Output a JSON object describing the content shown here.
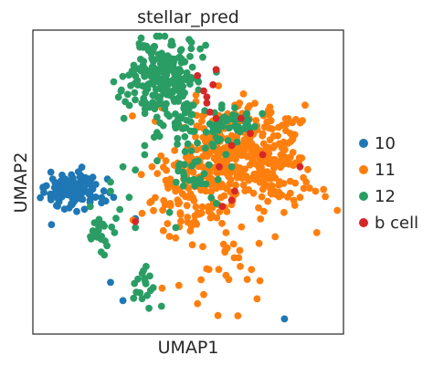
{
  "chart_data": {
    "type": "scatter",
    "title": "stellar_pred",
    "xlabel": "UMAP1",
    "ylabel": "UMAP2",
    "xlim": [
      0,
      100
    ],
    "ylim": [
      0,
      100
    ],
    "grid": false,
    "legend_position": "right",
    "series": [
      {
        "name": "10",
        "color": "#1f77b4",
        "clusters": [
          {
            "cx": 13,
            "cy": 47,
            "sx": 4.5,
            "sy": 3.2,
            "n": 140
          }
        ],
        "points": [
          [
            24,
            51
          ],
          [
            26,
            45
          ],
          [
            8,
            45
          ],
          [
            6,
            36
          ],
          [
            33,
            38
          ],
          [
            29,
            11
          ],
          [
            25,
            17
          ],
          [
            81,
            5
          ]
        ]
      },
      {
        "name": "11",
        "color": "#ff7f0e",
        "clusters": [
          {
            "cx": 68,
            "cy": 63,
            "sx": 9,
            "sy": 6,
            "n": 220
          },
          {
            "cx": 58,
            "cy": 52,
            "sx": 9,
            "sy": 6,
            "n": 130
          },
          {
            "cx": 75,
            "cy": 50,
            "sx": 9,
            "sy": 5,
            "n": 70
          },
          {
            "cx": 50,
            "cy": 42,
            "sx": 8,
            "sy": 7,
            "n": 60
          },
          {
            "cx": 60,
            "cy": 26,
            "sx": 10,
            "sy": 8,
            "n": 25
          }
        ],
        "points": [
          [
            47,
            16
          ],
          [
            53,
            10
          ],
          [
            66,
            6
          ],
          [
            69,
            18
          ],
          [
            55,
            13
          ],
          [
            91,
            47
          ],
          [
            88,
            50
          ],
          [
            42,
            34
          ],
          [
            84,
            44
          ],
          [
            78,
            32
          ]
        ]
      },
      {
        "name": "12",
        "color": "#2a9d64",
        "clusters": [
          {
            "cx": 42,
            "cy": 84,
            "sx": 5.5,
            "sy": 6.5,
            "n": 230
          },
          {
            "cx": 56,
            "cy": 67,
            "sx": 6,
            "sy": 3.5,
            "n": 45
          },
          {
            "cx": 67,
            "cy": 71,
            "sx": 3.5,
            "sy": 3,
            "n": 30
          },
          {
            "cx": 52,
            "cy": 53,
            "sx": 3.5,
            "sy": 3.5,
            "n": 25
          },
          {
            "cx": 22,
            "cy": 35,
            "sx": 2.5,
            "sy": 3,
            "n": 22
          },
          {
            "cx": 37,
            "cy": 16,
            "sx": 2.5,
            "sy": 3.5,
            "n": 18
          }
        ],
        "points": [
          [
            33,
            54
          ],
          [
            29,
            55
          ],
          [
            36,
            59
          ],
          [
            40,
            57
          ],
          [
            25,
            50
          ],
          [
            28,
            41
          ],
          [
            31,
            45
          ],
          [
            44,
            40
          ],
          [
            46,
            35
          ],
          [
            22,
            27
          ],
          [
            23,
            26
          ],
          [
            33,
            35
          ],
          [
            36,
            62
          ],
          [
            49,
            60
          ],
          [
            64,
            55
          ],
          [
            25,
            47
          ]
        ]
      },
      {
        "name": "b cell",
        "color": "#d62728",
        "clusters": [],
        "points": [
          [
            55,
            80
          ],
          [
            56,
            76
          ],
          [
            57,
            73
          ],
          [
            58,
            82
          ],
          [
            53,
            85
          ],
          [
            59,
            87
          ],
          [
            56,
            78
          ],
          [
            59,
            71
          ],
          [
            70,
            66
          ],
          [
            67,
            71
          ],
          [
            64,
            62
          ],
          [
            74,
            59
          ],
          [
            64,
            44
          ],
          [
            61,
            42
          ],
          [
            33,
            37
          ],
          [
            60,
            55
          ],
          [
            65,
            47
          ],
          [
            86,
            55
          ]
        ]
      }
    ]
  }
}
